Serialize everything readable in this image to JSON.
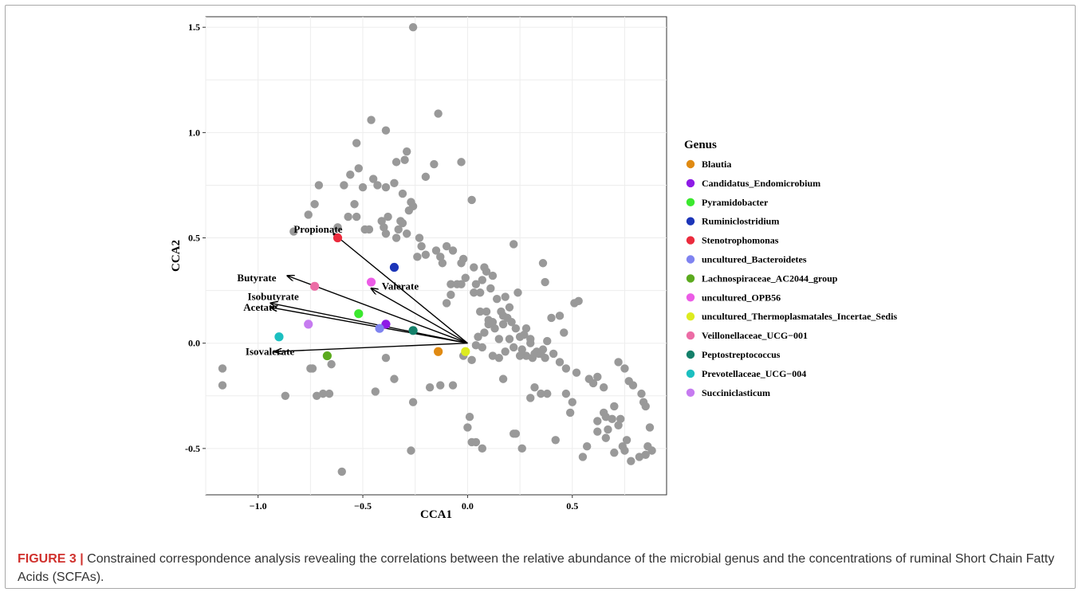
{
  "chart_data": {
    "type": "scatter",
    "xlabel": "CCA1",
    "ylabel": "CCA2",
    "xlim": [
      -1.25,
      0.95
    ],
    "ylim": [
      -0.72,
      1.55
    ],
    "xticks": [
      -1.0,
      -0.5,
      0.0,
      0.5
    ],
    "xtick_labels": [
      "−1.0",
      "−0.5",
      "0.0",
      "0.5"
    ],
    "yticks": [
      -0.5,
      0.0,
      0.5,
      1.0,
      1.5
    ],
    "ytick_labels": [
      "-0.5",
      "0.0",
      "0.5",
      "1.0",
      "1.5"
    ],
    "grid": true,
    "legend_placement": "right",
    "legend_title": "Genus",
    "background_points": {
      "color": "#999999",
      "x": [
        -0.26,
        -0.14,
        -0.2,
        -0.29,
        -0.39,
        -0.34,
        -0.3,
        -0.46,
        -0.53,
        -0.16,
        -0.03,
        -0.52,
        -0.45,
        -0.35,
        -0.39,
        -0.43,
        -0.5,
        -0.56,
        -0.59,
        -0.54,
        -0.57,
        -0.62,
        -0.47,
        -0.41,
        -0.38,
        -0.33,
        -0.26,
        -0.27,
        -0.28,
        -0.31,
        -0.71,
        -0.73,
        -0.76,
        -0.83,
        -0.53,
        -0.49,
        -0.34,
        -0.39,
        -0.4,
        -0.32,
        -0.31,
        -0.29,
        -0.23,
        -0.22,
        -0.24,
        -0.2,
        -0.15,
        -0.13,
        -0.07,
        -0.03,
        0.02,
        -0.02,
        -0.1,
        0.22,
        0.03,
        0.07,
        0.08,
        -0.05,
        -0.08,
        -0.12,
        -0.08,
        -0.03,
        -0.01,
        0.04,
        0.09,
        0.12,
        0.18,
        0.2,
        0.24,
        0.36,
        0.37,
        0.03,
        0.06,
        0.09,
        0.11,
        0.14,
        0.16,
        0.19,
        0.21,
        0.23,
        0.25,
        0.27,
        0.28,
        0.3,
        0.33,
        0.36,
        0.38,
        0.4,
        0.05,
        0.08,
        0.1,
        0.13,
        0.15,
        0.17,
        0.2,
        0.22,
        0.26,
        0.3,
        0.31,
        0.34,
        0.37,
        0.44,
        0.47,
        0.52,
        0.58,
        0.6,
        0.62,
        0.65,
        0.72,
        0.75,
        0.77,
        0.79,
        0.83,
        0.84,
        0.85,
        0.87,
        0.86,
        0.88,
        0.85,
        0.82,
        0.78,
        0.75,
        0.72,
        0.7,
        0.66,
        0.62,
        0.57,
        0.62,
        0.67,
        0.66,
        0.7,
        0.74,
        0.76,
        0.65,
        0.69,
        0.73,
        0.55,
        0.5,
        0.49,
        0.47,
        0.42,
        0.38,
        0.35,
        0.32,
        0.3,
        0.26,
        0.22,
        0.17,
        0.15,
        0.12,
        0.07,
        0.04,
        0.02,
        0.01,
        -0.07,
        -0.13,
        -0.18,
        -0.26,
        -0.35,
        -0.44,
        -0.39,
        -1.17,
        -1.17,
        -0.87,
        -0.74,
        -0.72,
        -0.69,
        -0.65,
        -0.66,
        -0.75,
        -0.6,
        -0.27,
        0.0,
        0.02,
        0.04,
        0.07,
        0.23,
        0.28,
        0.18,
        -0.02,
        -0.1,
        0.12,
        0.17,
        0.06,
        0.1,
        0.25,
        0.32,
        0.46,
        0.41,
        0.51,
        0.44,
        0.53,
        0.35
      ],
      "y": [
        1.5,
        1.09,
        0.79,
        0.91,
        1.01,
        0.86,
        0.87,
        1.06,
        0.95,
        0.85,
        0.86,
        0.83,
        0.78,
        0.76,
        0.74,
        0.75,
        0.74,
        0.8,
        0.75,
        0.66,
        0.6,
        0.55,
        0.54,
        0.58,
        0.6,
        0.54,
        0.65,
        0.67,
        0.63,
        0.71,
        0.75,
        0.66,
        0.61,
        0.53,
        0.6,
        0.54,
        0.5,
        0.52,
        0.55,
        0.58,
        0.57,
        0.52,
        0.5,
        0.46,
        0.41,
        0.42,
        0.44,
        0.41,
        0.44,
        0.38,
        0.68,
        0.4,
        0.46,
        0.47,
        0.36,
        0.3,
        0.36,
        0.28,
        0.28,
        0.38,
        0.23,
        0.28,
        0.31,
        0.28,
        0.34,
        0.32,
        0.22,
        0.17,
        0.24,
        0.38,
        0.29,
        0.24,
        0.24,
        0.15,
        0.26,
        0.21,
        0.15,
        0.12,
        0.1,
        0.07,
        0.03,
        0.04,
        0.07,
        0.0,
        -0.04,
        -0.03,
        0.01,
        0.12,
        0.03,
        0.05,
        0.11,
        0.07,
        0.02,
        0.09,
        0.02,
        -0.02,
        -0.03,
        0.02,
        -0.07,
        -0.05,
        -0.07,
        -0.09,
        -0.12,
        -0.14,
        -0.17,
        -0.19,
        -0.16,
        -0.21,
        -0.09,
        -0.12,
        -0.18,
        -0.2,
        -0.24,
        -0.28,
        -0.3,
        -0.4,
        -0.49,
        -0.51,
        -0.53,
        -0.54,
        -0.56,
        -0.51,
        -0.39,
        -0.3,
        -0.35,
        -0.42,
        -0.49,
        -0.37,
        -0.41,
        -0.45,
        -0.52,
        -0.49,
        -0.46,
        -0.33,
        -0.36,
        -0.36,
        -0.54,
        -0.28,
        -0.33,
        -0.24,
        -0.46,
        -0.24,
        -0.24,
        -0.21,
        -0.26,
        -0.5,
        -0.43,
        -0.17,
        -0.07,
        -0.06,
        -0.02,
        -0.01,
        -0.08,
        -0.35,
        -0.2,
        -0.2,
        -0.21,
        -0.28,
        -0.17,
        -0.23,
        -0.07,
        -0.12,
        -0.2,
        -0.25,
        -0.12,
        -0.25,
        -0.24,
        -0.1,
        -0.24,
        -0.12,
        -0.61,
        -0.51,
        -0.4,
        -0.47,
        -0.47,
        -0.5,
        -0.43,
        -0.06,
        -0.04,
        -0.06,
        0.19,
        0.1,
        0.13,
        0.15,
        0.09,
        -0.06,
        -0.05,
        0.05,
        -0.05,
        0.19,
        0.13,
        0.2,
        -0.05
      ],
      "y2": []
    },
    "series": [
      {
        "name": "Blautia",
        "color": "#E08A12",
        "x": -0.14,
        "y": -0.04
      },
      {
        "name": "Candidatus_Endomicrobium",
        "color": "#8E1BE6",
        "x": -0.39,
        "y": 0.09
      },
      {
        "name": "Pyramidobacter",
        "color": "#3BE82E",
        "x": -0.52,
        "y": 0.14
      },
      {
        "name": "Ruminiclostridium",
        "color": "#1C35B8",
        "x": -0.35,
        "y": 0.36
      },
      {
        "name": "Stenotrophomonas",
        "color": "#EB2B3D",
        "x": -0.62,
        "y": 0.5
      },
      {
        "name": "uncultured_Bacteroidetes",
        "color": "#7F83F0",
        "x": -0.42,
        "y": 0.07
      },
      {
        "name": "Lachnospiraceae_AC2044_group",
        "color": "#5BAA1E",
        "x": -0.67,
        "y": -0.06
      },
      {
        "name": "uncultured_OPB56",
        "color": "#EC5CE6",
        "x": -0.46,
        "y": 0.29
      },
      {
        "name": "uncultured_Thermoplasmatales_Incertae_Sedis",
        "color": "#DDEB1F",
        "x": -0.01,
        "y": -0.04
      },
      {
        "name": "Veillonellaceae_UCG-001",
        "color": "#EC6CA5",
        "x": -0.73,
        "y": 0.27
      },
      {
        "name": "Peptostreptococcus",
        "color": "#14806A",
        "x": -0.26,
        "y": 0.06
      },
      {
        "name": "Prevotellaceae_UCG-004",
        "color": "#1CBFC0",
        "x": -0.9,
        "y": 0.03
      },
      {
        "name": "Succiniclasticum",
        "color": "#C67BF0",
        "x": -0.76,
        "y": 0.09
      }
    ],
    "legend_labels": [
      "Blautia",
      "Candidatus_Endomicrobium",
      "Pyramidobacter",
      "Ruminiclostridium",
      "Stenotrophomonas",
      "uncultured_Bacteroidetes",
      "Lachnospiraceae_AC2044_group",
      "uncultured_OPB56",
      "uncultured_Thermoplasmatales_Incertae_Sedis",
      "Veillonellaceae_UCG−001",
      "Peptostreptococcus",
      "Prevotellaceae_UCG−004",
      "Succiniclasticum"
    ],
    "vectors": [
      {
        "name": "Propionate",
        "x": -0.64,
        "y": 0.52,
        "label_x": -0.83,
        "label_y": 0.54
      },
      {
        "name": "Butyrate",
        "x": -0.86,
        "y": 0.32,
        "label_x": -1.1,
        "label_y": 0.31
      },
      {
        "name": "Isobutyrate",
        "x": -0.94,
        "y": 0.19,
        "label_x": -1.05,
        "label_y": 0.22
      },
      {
        "name": "Acetate",
        "x": -0.94,
        "y": 0.17,
        "label_x": -1.07,
        "label_y": 0.17
      },
      {
        "name": "Valerate",
        "x": -0.46,
        "y": 0.26,
        "label_x": -0.41,
        "label_y": 0.27
      },
      {
        "name": "Isovalerate",
        "x": -0.92,
        "y": -0.04,
        "label_x": -1.06,
        "label_y": -0.04
      }
    ]
  },
  "caption": {
    "label": "FIGURE 3 |",
    "text": " Constrained correspondence analysis revealing the correlations between the relative abundance of the microbial genus and the concentrations of ruminal Short Chain Fatty Acids (SCFAs)."
  }
}
